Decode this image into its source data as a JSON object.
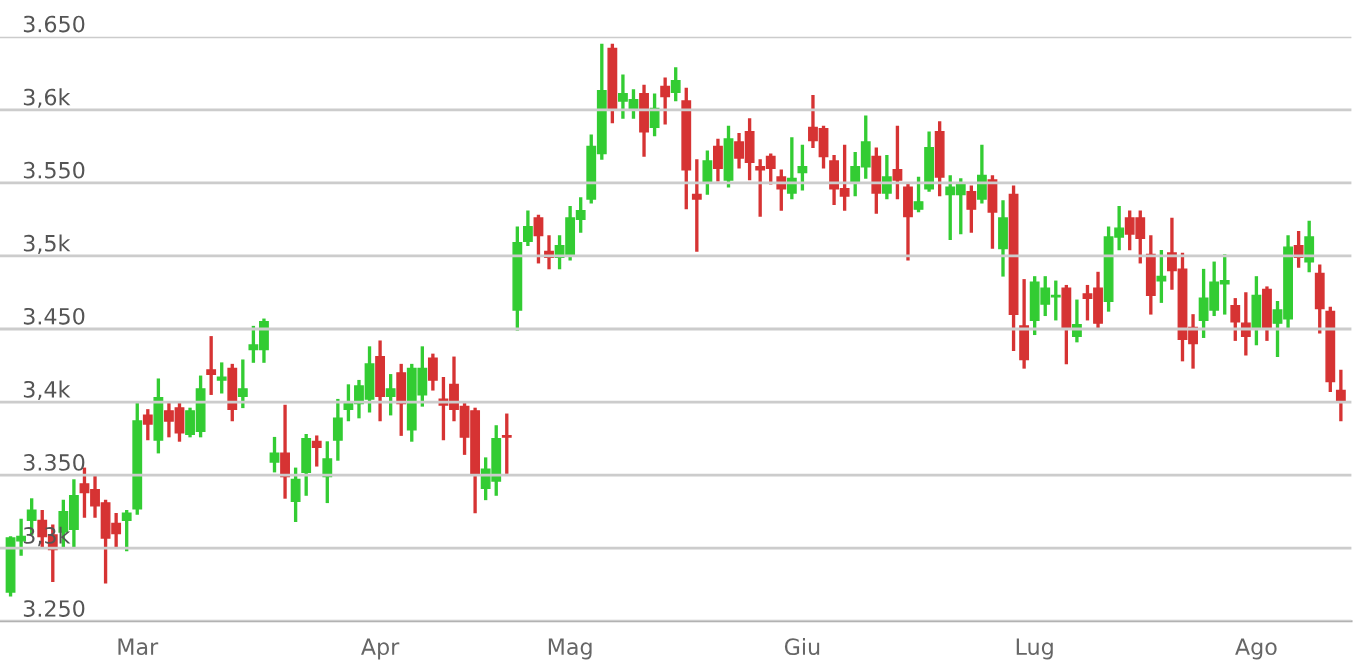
{
  "chart_data": {
    "type": "candlestick",
    "categories": [
      null,
      null,
      null,
      null,
      null,
      null,
      null,
      null,
      null,
      null,
      null,
      null,
      "Mar",
      null,
      null,
      null,
      null,
      null,
      null,
      null,
      null,
      null,
      null,
      null,
      null,
      null,
      null,
      null,
      null,
      null,
      null,
      null,
      null,
      null,
      null,
      "Apr",
      null,
      null,
      null,
      null,
      null,
      null,
      null,
      null,
      null,
      null,
      null,
      null,
      null,
      null,
      null,
      null,
      null,
      "Mag",
      null,
      null,
      null,
      null,
      null,
      null,
      null,
      null,
      null,
      null,
      null,
      null,
      null,
      null,
      null,
      null,
      null,
      null,
      null,
      null,
      null,
      "Giu",
      null,
      null,
      null,
      null,
      null,
      null,
      null,
      null,
      null,
      null,
      null,
      null,
      null,
      null,
      null,
      null,
      null,
      null,
      null,
      null,
      null,
      "Lug",
      null,
      null,
      null,
      null,
      null,
      null,
      null,
      null,
      null,
      null,
      null,
      null,
      null,
      null,
      null,
      null,
      null,
      null,
      null,
      null,
      "Ago",
      null,
      null,
      null,
      null,
      null,
      null,
      null,
      null
    ],
    "ohlc": [
      [
        3270,
        3307,
        3268,
        3307
      ],
      [
        3305,
        3319,
        3296,
        3308
      ],
      [
        3319,
        3333,
        3310,
        3326
      ],
      [
        3319,
        3325,
        3301,
        3308
      ],
      [
        3309,
        3315,
        3278,
        3299
      ],
      [
        3311,
        3332,
        3301,
        3325
      ],
      [
        3313,
        3346,
        3301,
        3336
      ],
      [
        3344,
        3354,
        3322,
        3338
      ],
      [
        3340,
        3349,
        3322,
        3329
      ],
      [
        3331,
        3332,
        3277,
        3307
      ],
      [
        3317,
        3323,
        3301,
        3310
      ],
      [
        3319,
        3325,
        3299,
        3324
      ],
      [
        3327,
        3399,
        3324,
        3387
      ],
      [
        3391,
        3394,
        3375,
        3385
      ],
      [
        3374,
        3415,
        3366,
        3403
      ],
      [
        3394,
        3399,
        3377,
        3387
      ],
      [
        3396,
        3399,
        3374,
        3379
      ],
      [
        3378,
        3395,
        3377,
        3394
      ],
      [
        3380,
        3417,
        3377,
        3409
      ],
      [
        3422,
        3444,
        3406,
        3419
      ],
      [
        3415,
        3426,
        3407,
        3417
      ],
      [
        3423,
        3425,
        3388,
        3395
      ],
      [
        3404,
        3428,
        3397,
        3409
      ],
      [
        3436,
        3451,
        3428,
        3439
      ],
      [
        3436,
        3456,
        3428,
        3455
      ],
      [
        3359,
        3375,
        3353,
        3365
      ],
      [
        3365,
        3397,
        3335,
        3349
      ],
      [
        3332,
        3354,
        3319,
        3347
      ],
      [
        3352,
        3377,
        3337,
        3375
      ],
      [
        3373,
        3376,
        3357,
        3369
      ],
      [
        3349,
        3372,
        3332,
        3361
      ],
      [
        3374,
        3401,
        3361,
        3389
      ],
      [
        3395,
        3411,
        3388,
        3399
      ],
      [
        3399,
        3414,
        3390,
        3411
      ],
      [
        3402,
        3437,
        3394,
        3426
      ],
      [
        3431,
        3441,
        3388,
        3404
      ],
      [
        3404,
        3418,
        3392,
        3409
      ],
      [
        3420,
        3425,
        3378,
        3399
      ],
      [
        3381,
        3425,
        3374,
        3423
      ],
      [
        3405,
        3437,
        3398,
        3423
      ],
      [
        3430,
        3432,
        3409,
        3415
      ],
      [
        3402,
        3416,
        3375,
        3398
      ],
      [
        3412,
        3430,
        3388,
        3395
      ],
      [
        3397,
        3399,
        3365,
        3376
      ],
      [
        3394,
        3395,
        3325,
        3350
      ],
      [
        3341,
        3361,
        3334,
        3354
      ],
      [
        3346,
        3383,
        3337,
        3375
      ],
      [
        3377,
        3391,
        3352,
        3376
      ],
      [
        3463,
        3519,
        3450,
        3509
      ],
      [
        3510,
        3530,
        3508,
        3520
      ],
      [
        3526,
        3527,
        3496,
        3514
      ],
      [
        3503,
        3513,
        3492,
        3499
      ],
      [
        3499,
        3513,
        3492,
        3507
      ],
      [
        3500,
        3533,
        3498,
        3526
      ],
      [
        3525,
        3539,
        3517,
        3531
      ],
      [
        3539,
        3582,
        3537,
        3575
      ],
      [
        3570,
        3644,
        3567,
        3613
      ],
      [
        3642,
        3644,
        3592,
        3600
      ],
      [
        3606,
        3623,
        3595,
        3611
      ],
      [
        3601,
        3613,
        3595,
        3607
      ],
      [
        3611,
        3616,
        3569,
        3585
      ],
      [
        3588,
        3610,
        3583,
        3601
      ],
      [
        3616,
        3621,
        3591,
        3609
      ],
      [
        3612,
        3628,
        3607,
        3620
      ],
      [
        3606,
        3614,
        3533,
        3559
      ],
      [
        3542,
        3565,
        3504,
        3539
      ],
      [
        3550,
        3571,
        3543,
        3565
      ],
      [
        3575,
        3579,
        3552,
        3560
      ],
      [
        3552,
        3588,
        3548,
        3580
      ],
      [
        3578,
        3583,
        3561,
        3567
      ],
      [
        3585,
        3593,
        3553,
        3564
      ],
      [
        3561,
        3565,
        3528,
        3559
      ],
      [
        3568,
        3569,
        3550,
        3560
      ],
      [
        3554,
        3558,
        3532,
        3546
      ],
      [
        3543,
        3580,
        3540,
        3553
      ],
      [
        3557,
        3575,
        3546,
        3561
      ],
      [
        3588,
        3609,
        3575,
        3579
      ],
      [
        3587,
        3588,
        3561,
        3568
      ],
      [
        3565,
        3568,
        3536,
        3546
      ],
      [
        3546,
        3575,
        3532,
        3541
      ],
      [
        3550,
        3570,
        3542,
        3561
      ],
      [
        3561,
        3595,
        3554,
        3578
      ],
      [
        3568,
        3573,
        3530,
        3543
      ],
      [
        3543,
        3568,
        3540,
        3554
      ],
      [
        3559,
        3588,
        3540,
        3552
      ],
      [
        3547,
        3549,
        3498,
        3527
      ],
      [
        3532,
        3553,
        3531,
        3537
      ],
      [
        3546,
        3584,
        3545,
        3574
      ],
      [
        3585,
        3591,
        3542,
        3554
      ],
      [
        3542,
        3554,
        3512,
        3547
      ],
      [
        3542,
        3552,
        3516,
        3549
      ],
      [
        3544,
        3547,
        3517,
        3532
      ],
      [
        3539,
        3575,
        3537,
        3555
      ],
      [
        3552,
        3554,
        3506,
        3530
      ],
      [
        3505,
        3537,
        3487,
        3526
      ],
      [
        3542,
        3547,
        3436,
        3460
      ],
      [
        3452,
        3483,
        3424,
        3429
      ],
      [
        3456,
        3485,
        3447,
        3482
      ],
      [
        3467,
        3485,
        3460,
        3478
      ],
      [
        3472,
        3482,
        3457,
        3473
      ],
      [
        3478,
        3479,
        3427,
        3450
      ],
      [
        3445,
        3469,
        3442,
        3453
      ],
      [
        3474,
        3479,
        3457,
        3471
      ],
      [
        3478,
        3488,
        3451,
        3454
      ],
      [
        3469,
        3519,
        3463,
        3513
      ],
      [
        3513,
        3533,
        3505,
        3519
      ],
      [
        3526,
        3530,
        3505,
        3515
      ],
      [
        3526,
        3530,
        3496,
        3512
      ],
      [
        3501,
        3513,
        3461,
        3473
      ],
      [
        3483,
        3503,
        3469,
        3486
      ],
      [
        3502,
        3525,
        3478,
        3490
      ],
      [
        3491,
        3501,
        3429,
        3443
      ],
      [
        3451,
        3459,
        3424,
        3440
      ],
      [
        3456,
        3490,
        3445,
        3471
      ],
      [
        3463,
        3495,
        3460,
        3482
      ],
      [
        3481,
        3500,
        3461,
        3483
      ],
      [
        3466,
        3470,
        3443,
        3455
      ],
      [
        3454,
        3474,
        3433,
        3445
      ],
      [
        3451,
        3485,
        3440,
        3473
      ],
      [
        3477,
        3478,
        3443,
        3451
      ],
      [
        3454,
        3468,
        3432,
        3463
      ],
      [
        3457,
        3513,
        3451,
        3506
      ],
      [
        3507,
        3516,
        3493,
        3499
      ],
      [
        3496,
        3523,
        3490,
        3513
      ],
      [
        3488,
        3493,
        3448,
        3464
      ],
      [
        3462,
        3464,
        3408,
        3414
      ],
      [
        3408,
        3421,
        3388,
        3401
      ]
    ],
    "colors": [
      "#33cc33",
      "#33cc33",
      "#33cc33",
      "#d63333",
      "#d63333",
      "#33cc33",
      "#33cc33",
      "#d63333",
      "#d63333",
      "#d63333",
      "#d63333",
      "#33cc33",
      "#33cc33",
      "#d63333",
      "#33cc33",
      "#d63333",
      "#d63333",
      "#33cc33",
      "#33cc33",
      "#d63333",
      "#33cc33",
      "#d63333",
      "#33cc33",
      "#33cc33",
      "#33cc33",
      "#33cc33",
      "#d63333",
      "#33cc33",
      "#33cc33",
      "#d63333",
      "#33cc33",
      "#33cc33",
      "#33cc33",
      "#33cc33",
      "#33cc33",
      "#d63333",
      "#33cc33",
      "#d63333",
      "#33cc33",
      "#33cc33",
      "#d63333",
      "#d63333",
      "#d63333",
      "#d63333",
      "#d63333",
      "#33cc33",
      "#33cc33",
      "#d63333",
      "#33cc33",
      "#33cc33",
      "#d63333",
      "#d63333",
      "#33cc33",
      "#33cc33",
      "#33cc33",
      "#33cc33",
      "#33cc33",
      "#d63333",
      "#33cc33",
      "#33cc33",
      "#d63333",
      "#33cc33",
      "#d63333",
      "#33cc33",
      "#d63333",
      "#d63333",
      "#33cc33",
      "#d63333",
      "#33cc33",
      "#d63333",
      "#d63333",
      "#d63333",
      "#d63333",
      "#d63333",
      "#33cc33",
      "#33cc33",
      "#d63333",
      "#d63333",
      "#d63333",
      "#d63333",
      "#33cc33",
      "#33cc33",
      "#d63333",
      "#33cc33",
      "#d63333",
      "#d63333",
      "#33cc33",
      "#33cc33",
      "#d63333",
      "#33cc33",
      "#33cc33",
      "#d63333",
      "#33cc33",
      "#d63333",
      "#33cc33",
      "#d63333",
      "#d63333",
      "#33cc33",
      "#33cc33",
      "#33cc33",
      "#d63333",
      "#33cc33",
      "#d63333",
      "#d63333",
      "#33cc33",
      "#33cc33",
      "#d63333",
      "#d63333",
      "#d63333",
      "#33cc33",
      "#d63333",
      "#d63333",
      "#d63333",
      "#33cc33",
      "#33cc33",
      "#33cc33",
      "#d63333",
      "#d63333",
      "#33cc33",
      "#d63333",
      "#33cc33",
      "#33cc33",
      "#d63333",
      "#33cc33",
      "#d63333",
      "#d63333",
      "#d63333"
    ],
    "ylim": [
      3250,
      3650
    ],
    "yticks": [
      {
        "value": 3250,
        "label": "3.250"
      },
      {
        "value": 3300,
        "label": "3,3k"
      },
      {
        "value": 3350,
        "label": "3.350"
      },
      {
        "value": 3400,
        "label": "3,4k"
      },
      {
        "value": 3450,
        "label": "3.450"
      },
      {
        "value": 3500,
        "label": "3,5k"
      },
      {
        "value": 3550,
        "label": "3.550"
      },
      {
        "value": 3600,
        "label": "3,6k"
      },
      {
        "value": 3650,
        "label": "3.650"
      }
    ],
    "grid": "y"
  }
}
